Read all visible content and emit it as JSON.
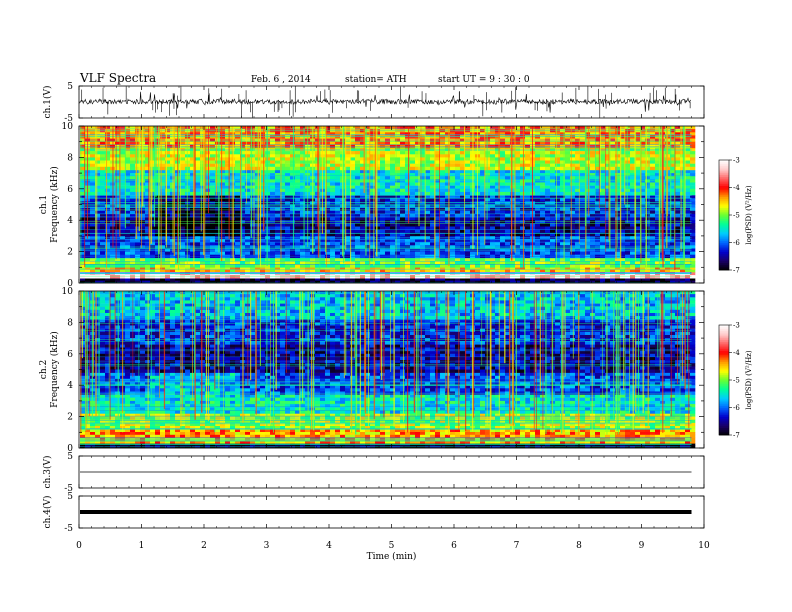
{
  "header": {
    "title": "VLF Spectra",
    "date": "Feb. 6 , 2014",
    "station": "station= ATH",
    "start": "start UT = 9 : 30 : 0"
  },
  "chart_data": [
    {
      "type": "line",
      "panel": "ch1-waveform",
      "ylabel": "ch.1(V)",
      "ylim": [
        -5,
        5
      ],
      "yticks": [
        "5",
        "-5"
      ],
      "xlim": [
        0,
        10
      ],
      "data_end_min": 9.8,
      "baseline_v": 0.1
    },
    {
      "type": "heatmap",
      "panel": "ch1-spectrogram",
      "ylabel_channel": "ch.1",
      "ylabel": "Frequency (kHz)",
      "ylim": [
        0,
        10
      ],
      "yticks": [
        "0",
        "2",
        "4",
        "6",
        "8",
        "10"
      ],
      "xlim": [
        0,
        10
      ],
      "data_end_min": 9.8,
      "colorbar": {
        "label": "log(PSD) (V²/Hz)",
        "range": [
          -7,
          -3
        ],
        "ticks": [
          "-7",
          "-6",
          "-5",
          "-4",
          "-3"
        ]
      },
      "bands_khz": [
        {
          "f": [
            0.0,
            0.3
          ],
          "v": -6.8
        },
        {
          "f": [
            0.3,
            0.7
          ],
          "v": -3.2
        },
        {
          "f": [
            0.7,
            1.0
          ],
          "v": -4.6
        },
        {
          "f": [
            1.0,
            1.6
          ],
          "v": -5.0
        },
        {
          "f": [
            1.6,
            3.0
          ],
          "v": -6.1
        },
        {
          "f": [
            3.0,
            4.2
          ],
          "v": -6.5
        },
        {
          "f": [
            4.2,
            5.6
          ],
          "v": -6.2
        },
        {
          "f": [
            5.6,
            7.2
          ],
          "v": -5.5
        },
        {
          "f": [
            7.2,
            8.6
          ],
          "v": -4.8
        },
        {
          "f": [
            8.6,
            10.0
          ],
          "v": -4.3
        }
      ]
    },
    {
      "type": "heatmap",
      "panel": "ch2-spectrogram",
      "ylabel_channel": "ch.2",
      "ylabel": "Frequency (kHz)",
      "ylim": [
        0,
        10
      ],
      "yticks": [
        "0",
        "2",
        "4",
        "6",
        "8",
        "10"
      ],
      "xlim": [
        0,
        10
      ],
      "data_end_min": 9.8,
      "colorbar": {
        "label": "log(PSD) (V²/Hz)",
        "range": [
          -7,
          -3
        ],
        "ticks": [
          "-7",
          "-6",
          "-5",
          "-4",
          "-3"
        ]
      },
      "bands_khz": [
        {
          "f": [
            0.0,
            0.3
          ],
          "v": -6.9
        },
        {
          "f": [
            0.3,
            1.2
          ],
          "v": -4.4
        },
        {
          "f": [
            1.2,
            2.2
          ],
          "v": -4.9
        },
        {
          "f": [
            2.2,
            3.4
          ],
          "v": -5.5
        },
        {
          "f": [
            3.4,
            4.8
          ],
          "v": -6.1
        },
        {
          "f": [
            4.8,
            6.6
          ],
          "v": -6.5
        },
        {
          "f": [
            6.6,
            8.2
          ],
          "v": -6.2
        },
        {
          "f": [
            8.2,
            10.0
          ],
          "v": -5.7
        }
      ]
    },
    {
      "type": "line",
      "panel": "ch3-waveform",
      "ylabel": "ch.3(V)",
      "ylim": [
        -5,
        5
      ],
      "yticks": [
        "5",
        "-5"
      ],
      "xlim": [
        0,
        10
      ],
      "data_end_min": 9.8,
      "baseline_v": 0.0
    },
    {
      "type": "line",
      "panel": "ch4-waveform",
      "ylabel": "ch.4(V)",
      "ylim": [
        -5,
        5
      ],
      "yticks": [
        "5",
        "-5"
      ],
      "xlim": [
        0,
        10
      ],
      "data_end_min": 9.8,
      "baseline_v": 0.0,
      "xlabel": "Time (min)",
      "xticks": [
        "0",
        "1",
        "2",
        "3",
        "4",
        "5",
        "6",
        "7",
        "8",
        "9",
        "10"
      ]
    }
  ],
  "colors": {
    "colormap": [
      "#000000",
      "#1a0066",
      "#0000cc",
      "#0066ff",
      "#00ccff",
      "#00ff99",
      "#66ff33",
      "#ffff00",
      "#ff9900",
      "#ff0000",
      "#ff6666",
      "#ffcccc",
      "#ffffff"
    ],
    "axis": "#000000"
  }
}
